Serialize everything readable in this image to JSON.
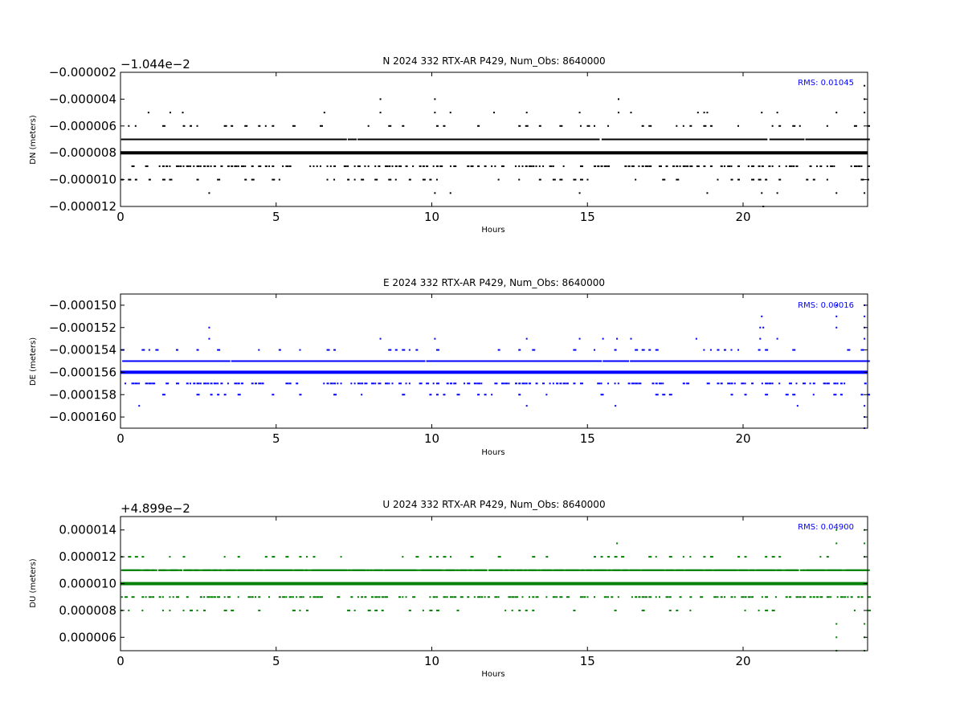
{
  "chart_data": [
    {
      "type": "scatter",
      "title": "N 2024 332 RTX-AR  P429, Num_Obs: 8640000",
      "xlabel": "Hours",
      "ylabel": "DN (meters)",
      "offset_label": "−1.044e−2",
      "rms_label": "RMS:  0.01045",
      "color": "#000000",
      "xlim": [
        0,
        24
      ],
      "ylim": [
        -1.2e-05,
        -2e-06
      ],
      "xticks": [
        0,
        5,
        10,
        15,
        20
      ],
      "xtick_labels": [
        "0",
        "5",
        "10",
        "15",
        "20"
      ],
      "yticks": [
        -2e-06,
        -4e-06,
        -6e-06,
        -8e-06,
        -1e-05,
        -1.2e-05
      ],
      "ytick_labels": [
        "−0.000002",
        "−0.000004",
        "−0.000006",
        "−0.000008",
        "−0.000010",
        "−0.000012"
      ],
      "main_line": -8e-06,
      "bands": [
        {
          "y": -7e-06,
          "density": "dense"
        },
        {
          "y": -9e-06,
          "density": "medium"
        },
        {
          "y": -6e-06,
          "density": "sparse"
        },
        {
          "y": -1e-05,
          "density": "sparse"
        }
      ],
      "outliers": [
        {
          "x": 0.9,
          "y": -5e-06
        },
        {
          "x": 1.6,
          "y": -5e-06
        },
        {
          "x": 2.0,
          "y": -5e-06
        },
        {
          "x": 2.85,
          "y": -1.1e-05
        },
        {
          "x": 6.55,
          "y": -5e-06
        },
        {
          "x": 8.35,
          "y": -4e-06
        },
        {
          "x": 8.35,
          "y": -5e-06
        },
        {
          "x": 10.1,
          "y": -4e-06
        },
        {
          "x": 10.1,
          "y": -5e-06
        },
        {
          "x": 10.1,
          "y": -1.1e-05
        },
        {
          "x": 10.6,
          "y": -5e-06
        },
        {
          "x": 10.6,
          "y": -1.1e-05
        },
        {
          "x": 12.0,
          "y": -5e-06
        },
        {
          "x": 13.05,
          "y": -5e-06
        },
        {
          "x": 14.75,
          "y": -5e-06
        },
        {
          "x": 14.75,
          "y": -1.1e-05
        },
        {
          "x": 16.0,
          "y": -4e-06
        },
        {
          "x": 16.0,
          "y": -5e-06
        },
        {
          "x": 16.4,
          "y": -5e-06
        },
        {
          "x": 18.55,
          "y": -5e-06
        },
        {
          "x": 18.75,
          "y": -5e-06
        },
        {
          "x": 18.85,
          "y": -5e-06
        },
        {
          "x": 18.85,
          "y": -1.1e-05
        },
        {
          "x": 20.6,
          "y": -5e-06
        },
        {
          "x": 20.6,
          "y": -1.1e-05
        },
        {
          "x": 20.65,
          "y": -1.2e-05
        },
        {
          "x": 21.1,
          "y": -5e-06
        },
        {
          "x": 21.1,
          "y": -1.1e-05
        },
        {
          "x": 23.0,
          "y": -5e-06
        },
        {
          "x": 23.0,
          "y": -1.1e-05
        },
        {
          "x": 23.9,
          "y": -3e-06
        },
        {
          "x": 23.9,
          "y": -4e-06
        },
        {
          "x": 23.9,
          "y": -5e-06
        },
        {
          "x": 23.9,
          "y": -1.1e-05
        }
      ]
    },
    {
      "type": "scatter",
      "title": "E 2024 332 RTX-AR  P429, Num_Obs: 8640000",
      "xlabel": "Hours",
      "ylabel": "DE (meters)",
      "offset_label": "",
      "rms_label": "RMS:  0.00016",
      "color": "#0000ff",
      "xlim": [
        0,
        24
      ],
      "ylim": [
        -0.000161,
        -0.000149
      ],
      "xticks": [
        0,
        5,
        10,
        15,
        20
      ],
      "xtick_labels": [
        "0",
        "5",
        "10",
        "15",
        "20"
      ],
      "yticks": [
        -0.00015,
        -0.000152,
        -0.000154,
        -0.000156,
        -0.000158,
        -0.00016
      ],
      "ytick_labels": [
        "−0.000150",
        "−0.000152",
        "−0.000154",
        "−0.000156",
        "−0.000158",
        "−0.000160"
      ],
      "main_line": -0.000156,
      "bands": [
        {
          "y": -0.000155,
          "density": "dense"
        },
        {
          "y": -0.000157,
          "density": "medium"
        },
        {
          "y": -0.000154,
          "density": "sparse"
        },
        {
          "y": -0.000158,
          "density": "sparse"
        }
      ],
      "outliers": [
        {
          "x": 0.6,
          "y": -0.000159
        },
        {
          "x": 2.85,
          "y": -0.000152
        },
        {
          "x": 2.85,
          "y": -0.000153
        },
        {
          "x": 8.35,
          "y": -0.000153
        },
        {
          "x": 10.1,
          "y": -0.000153
        },
        {
          "x": 13.05,
          "y": -0.000153
        },
        {
          "x": 13.05,
          "y": -0.000159
        },
        {
          "x": 14.75,
          "y": -0.000153
        },
        {
          "x": 15.9,
          "y": -0.000159
        },
        {
          "x": 16.4,
          "y": -0.000153
        },
        {
          "x": 15.95,
          "y": -0.000153
        },
        {
          "x": 15.5,
          "y": -0.000153
        },
        {
          "x": 18.5,
          "y": -0.000153
        },
        {
          "x": 20.6,
          "y": -0.000151
        },
        {
          "x": 20.55,
          "y": -0.000152
        },
        {
          "x": 20.65,
          "y": -0.000152
        },
        {
          "x": 20.55,
          "y": -0.000153
        },
        {
          "x": 21.1,
          "y": -0.000153
        },
        {
          "x": 21.75,
          "y": -0.000159
        },
        {
          "x": 23.0,
          "y": -0.00015
        },
        {
          "x": 23.0,
          "y": -0.000151
        },
        {
          "x": 23.0,
          "y": -0.000152
        },
        {
          "x": 23.9,
          "y": -0.00015
        },
        {
          "x": 23.9,
          "y": -0.000151
        },
        {
          "x": 23.9,
          "y": -0.000152
        },
        {
          "x": 23.9,
          "y": -0.000153
        },
        {
          "x": 23.9,
          "y": -0.000159
        },
        {
          "x": 23.9,
          "y": -0.00016
        },
        {
          "x": 23.9,
          "y": -0.000161
        }
      ]
    },
    {
      "type": "scatter",
      "title": "U 2024 332 RTX-AR  P429, Num_Obs: 8640000",
      "xlabel": "Hours",
      "ylabel": "DU (meters)",
      "offset_label": "+4.899e−2",
      "rms_label": "RMS:  0.04900",
      "color": "#008000",
      "xlim": [
        0,
        24
      ],
      "ylim": [
        5e-06,
        1.5e-05
      ],
      "xticks": [
        0,
        5,
        10,
        15,
        20
      ],
      "xtick_labels": [
        "0",
        "5",
        "10",
        "15",
        "20"
      ],
      "yticks": [
        1.4e-05,
        1.2e-05,
        1e-05,
        8e-06,
        6e-06
      ],
      "ytick_labels": [
        "0.000014",
        "0.000012",
        "0.000010",
        "0.000008",
        "0.000006"
      ],
      "main_line": 1e-05,
      "bands": [
        {
          "y": 1.1e-05,
          "density": "dense"
        },
        {
          "y": 9e-06,
          "density": "medium"
        },
        {
          "y": 1.2e-05,
          "density": "sparse"
        },
        {
          "y": 8e-06,
          "density": "sparse"
        }
      ],
      "outliers": [
        {
          "x": 15.95,
          "y": 1.3e-05
        },
        {
          "x": 23.0,
          "y": 1.3e-05
        },
        {
          "x": 23.0,
          "y": 1.4e-05
        },
        {
          "x": 23.0,
          "y": 7e-06
        },
        {
          "x": 23.0,
          "y": 6e-06
        },
        {
          "x": 23.0,
          "y": 5e-06
        },
        {
          "x": 23.9,
          "y": 1.4e-05
        },
        {
          "x": 23.9,
          "y": 1.3e-05
        },
        {
          "x": 23.9,
          "y": 1.2e-05
        },
        {
          "x": 23.9,
          "y": 7e-06
        },
        {
          "x": 23.9,
          "y": 6e-06
        },
        {
          "x": 23.9,
          "y": 5e-06
        }
      ]
    }
  ]
}
